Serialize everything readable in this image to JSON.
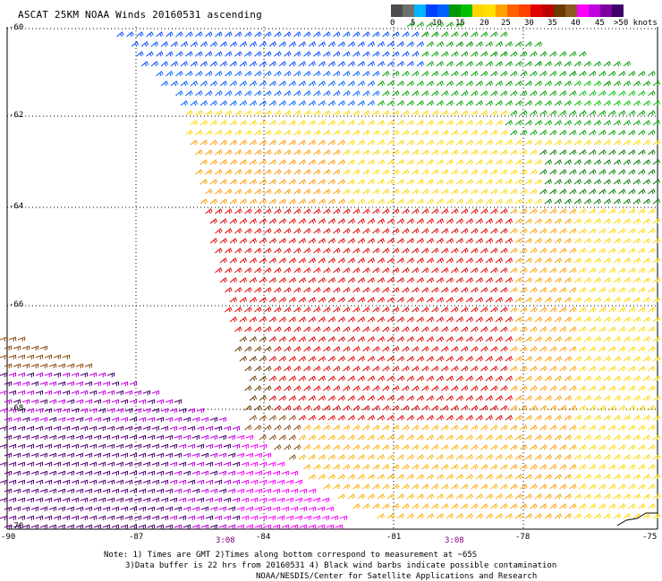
{
  "title": "ASCAT 25KM NOAA Winds 20160531 ascending",
  "scale": {
    "labels": [
      "0",
      "5",
      "10",
      "15",
      "20",
      "25",
      "30",
      "35",
      "40",
      "45",
      ">50 knots"
    ],
    "colors": [
      "#4d4d4d",
      "#6e6e6e",
      "#00b5ff",
      "#0040ff",
      "#009a00",
      "#ffd700",
      "#ffa000",
      "#ff4000",
      "#e00000",
      "#6b3a00",
      "#ff00ff",
      "#7a00a0",
      "#40006a"
    ]
  },
  "latitudes": [
    "-60",
    "-62",
    "-64",
    "-66",
    "-68",
    "-70"
  ],
  "longitudes": [
    "-90",
    "-87",
    "-84",
    "-81",
    "-78",
    "-75"
  ],
  "times": [
    "3:08",
    "3:08"
  ],
  "notes": [
    "Note: 1) Times are GMT 2)Times along bottom correspond to measurement at ~65S",
    "3)Data buffer is 22 hrs from 20160531 4) Black wind barbs indicate possible contamination",
    "NOAA/NESDIS/Center for Satellite Applications and Research"
  ]
}
